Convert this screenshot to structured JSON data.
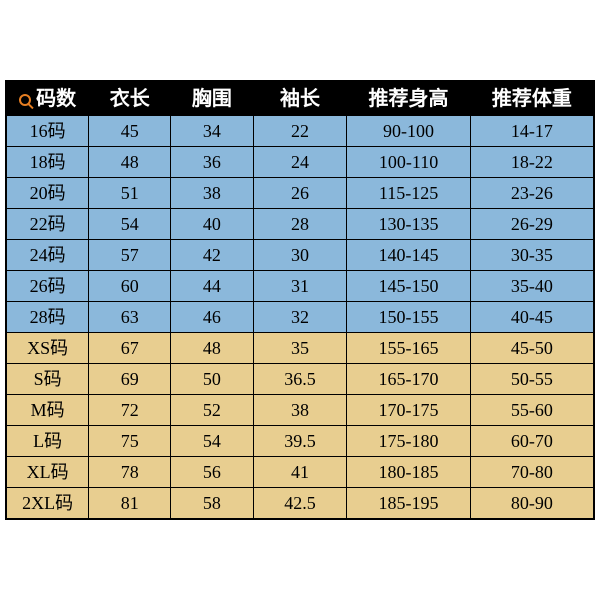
{
  "type": "table",
  "background_color": "#ffffff",
  "border_color": "#000000",
  "header": {
    "bg": "#000000",
    "fg": "#ffffff",
    "fontsize": 20,
    "icon_color": "#e67e22",
    "columns": [
      "码数",
      "衣长",
      "胸围",
      "袖长",
      "推荐身高",
      "推荐体重"
    ]
  },
  "sections": {
    "blue": {
      "bg": "#8bb8db",
      "rows": [
        [
          "16码",
          "45",
          "34",
          "22",
          "90-100",
          "14-17"
        ],
        [
          "18码",
          "48",
          "36",
          "24",
          "100-110",
          "18-22"
        ],
        [
          "20码",
          "51",
          "38",
          "26",
          "115-125",
          "23-26"
        ],
        [
          "22码",
          "54",
          "40",
          "28",
          "130-135",
          "26-29"
        ],
        [
          "24码",
          "57",
          "42",
          "30",
          "140-145",
          "30-35"
        ],
        [
          "26码",
          "60",
          "44",
          "31",
          "145-150",
          "35-40"
        ],
        [
          "28码",
          "63",
          "46",
          "32",
          "150-155",
          "40-45"
        ]
      ]
    },
    "tan": {
      "bg": "#e8ce90",
      "rows": [
        [
          "XS码",
          "67",
          "48",
          "35",
          "155-165",
          "45-50"
        ],
        [
          "S码",
          "69",
          "50",
          "36.5",
          "165-170",
          "50-55"
        ],
        [
          "M码",
          "72",
          "52",
          "38",
          "170-175",
          "55-60"
        ],
        [
          "L码",
          "75",
          "54",
          "39.5",
          "175-180",
          "60-70"
        ],
        [
          "XL码",
          "78",
          "56",
          "41",
          "180-185",
          "70-80"
        ],
        [
          "2XL码",
          "81",
          "58",
          "42.5",
          "185-195",
          "80-90"
        ]
      ]
    }
  },
  "column_widths_pct": [
    14,
    14,
    14,
    16,
    21,
    21
  ],
  "cell_fontsize": 18
}
